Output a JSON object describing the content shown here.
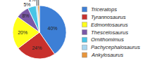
{
  "chart_data": {
    "type": "pie",
    "categories": [
      "Triceratops",
      "Tyrannosaurus",
      "Edmontosaurus",
      "Thescelosaurus",
      "Ornithomimus",
      "Pachycephalosaurus",
      "Ankylosaurus"
    ],
    "values": [
      40,
      24,
      20,
      8,
      5,
      1,
      1
    ],
    "value_labels": [
      "40%",
      "24%",
      "20%",
      "8%",
      "5%",
      "1%",
      "1%"
    ],
    "colors": [
      "#3d7fd6",
      "#c8312d",
      "#ffff1a",
      "#7a58a6",
      "#48c4e6",
      "#a7d6f0",
      "#e8953a"
    ],
    "data_labels": true
  }
}
